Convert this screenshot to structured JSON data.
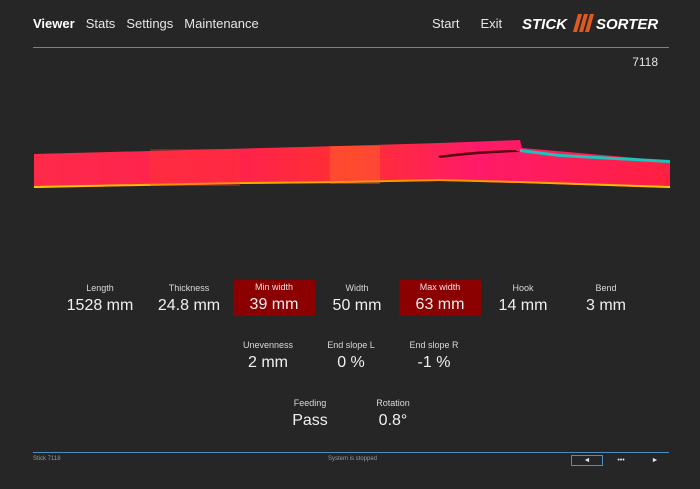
{
  "nav": {
    "items": [
      {
        "label": "Viewer",
        "active": true
      },
      {
        "label": "Stats",
        "active": false
      },
      {
        "label": "Settings",
        "active": false
      },
      {
        "label": "Maintenance",
        "active": false
      }
    ]
  },
  "actions": {
    "start": "Start",
    "exit": "Exit"
  },
  "logo": {
    "text_left": "STICK",
    "text_right": "SORTER",
    "accent_color": "#e05a20"
  },
  "stick_id": "7118",
  "measurements": {
    "row1": [
      {
        "label": "Length",
        "value": "1528 mm",
        "highlight": false
      },
      {
        "label": "Thickness",
        "value": "24.8 mm",
        "highlight": false
      },
      {
        "label": "Min width",
        "value": "39 mm",
        "highlight": true
      },
      {
        "label": "Width",
        "value": "50 mm",
        "highlight": false
      },
      {
        "label": "Max width",
        "value": "63 mm",
        "highlight": true
      },
      {
        "label": "Hook",
        "value": "14 mm",
        "highlight": false
      },
      {
        "label": "Bend",
        "value": "3 mm",
        "highlight": false
      }
    ],
    "row2": [
      {
        "label": "Unevenness",
        "value": "2 mm"
      },
      {
        "label": "End slope L",
        "value": "0 %"
      },
      {
        "label": "End slope R",
        "value": "-1 %"
      }
    ],
    "row3": [
      {
        "label": "Feeding",
        "value": "Pass"
      },
      {
        "label": "Rotation",
        "value": "0.8°"
      }
    ]
  },
  "footer": {
    "stick_label": "Stick 7118",
    "status": "System is stopped",
    "pager": {
      "prev": "◄",
      "more": "•••",
      "next": "►"
    }
  },
  "colors": {
    "highlight": "#8b0000",
    "accent_line": "#4a8fbf",
    "stick_main": "#ff1a4a"
  }
}
